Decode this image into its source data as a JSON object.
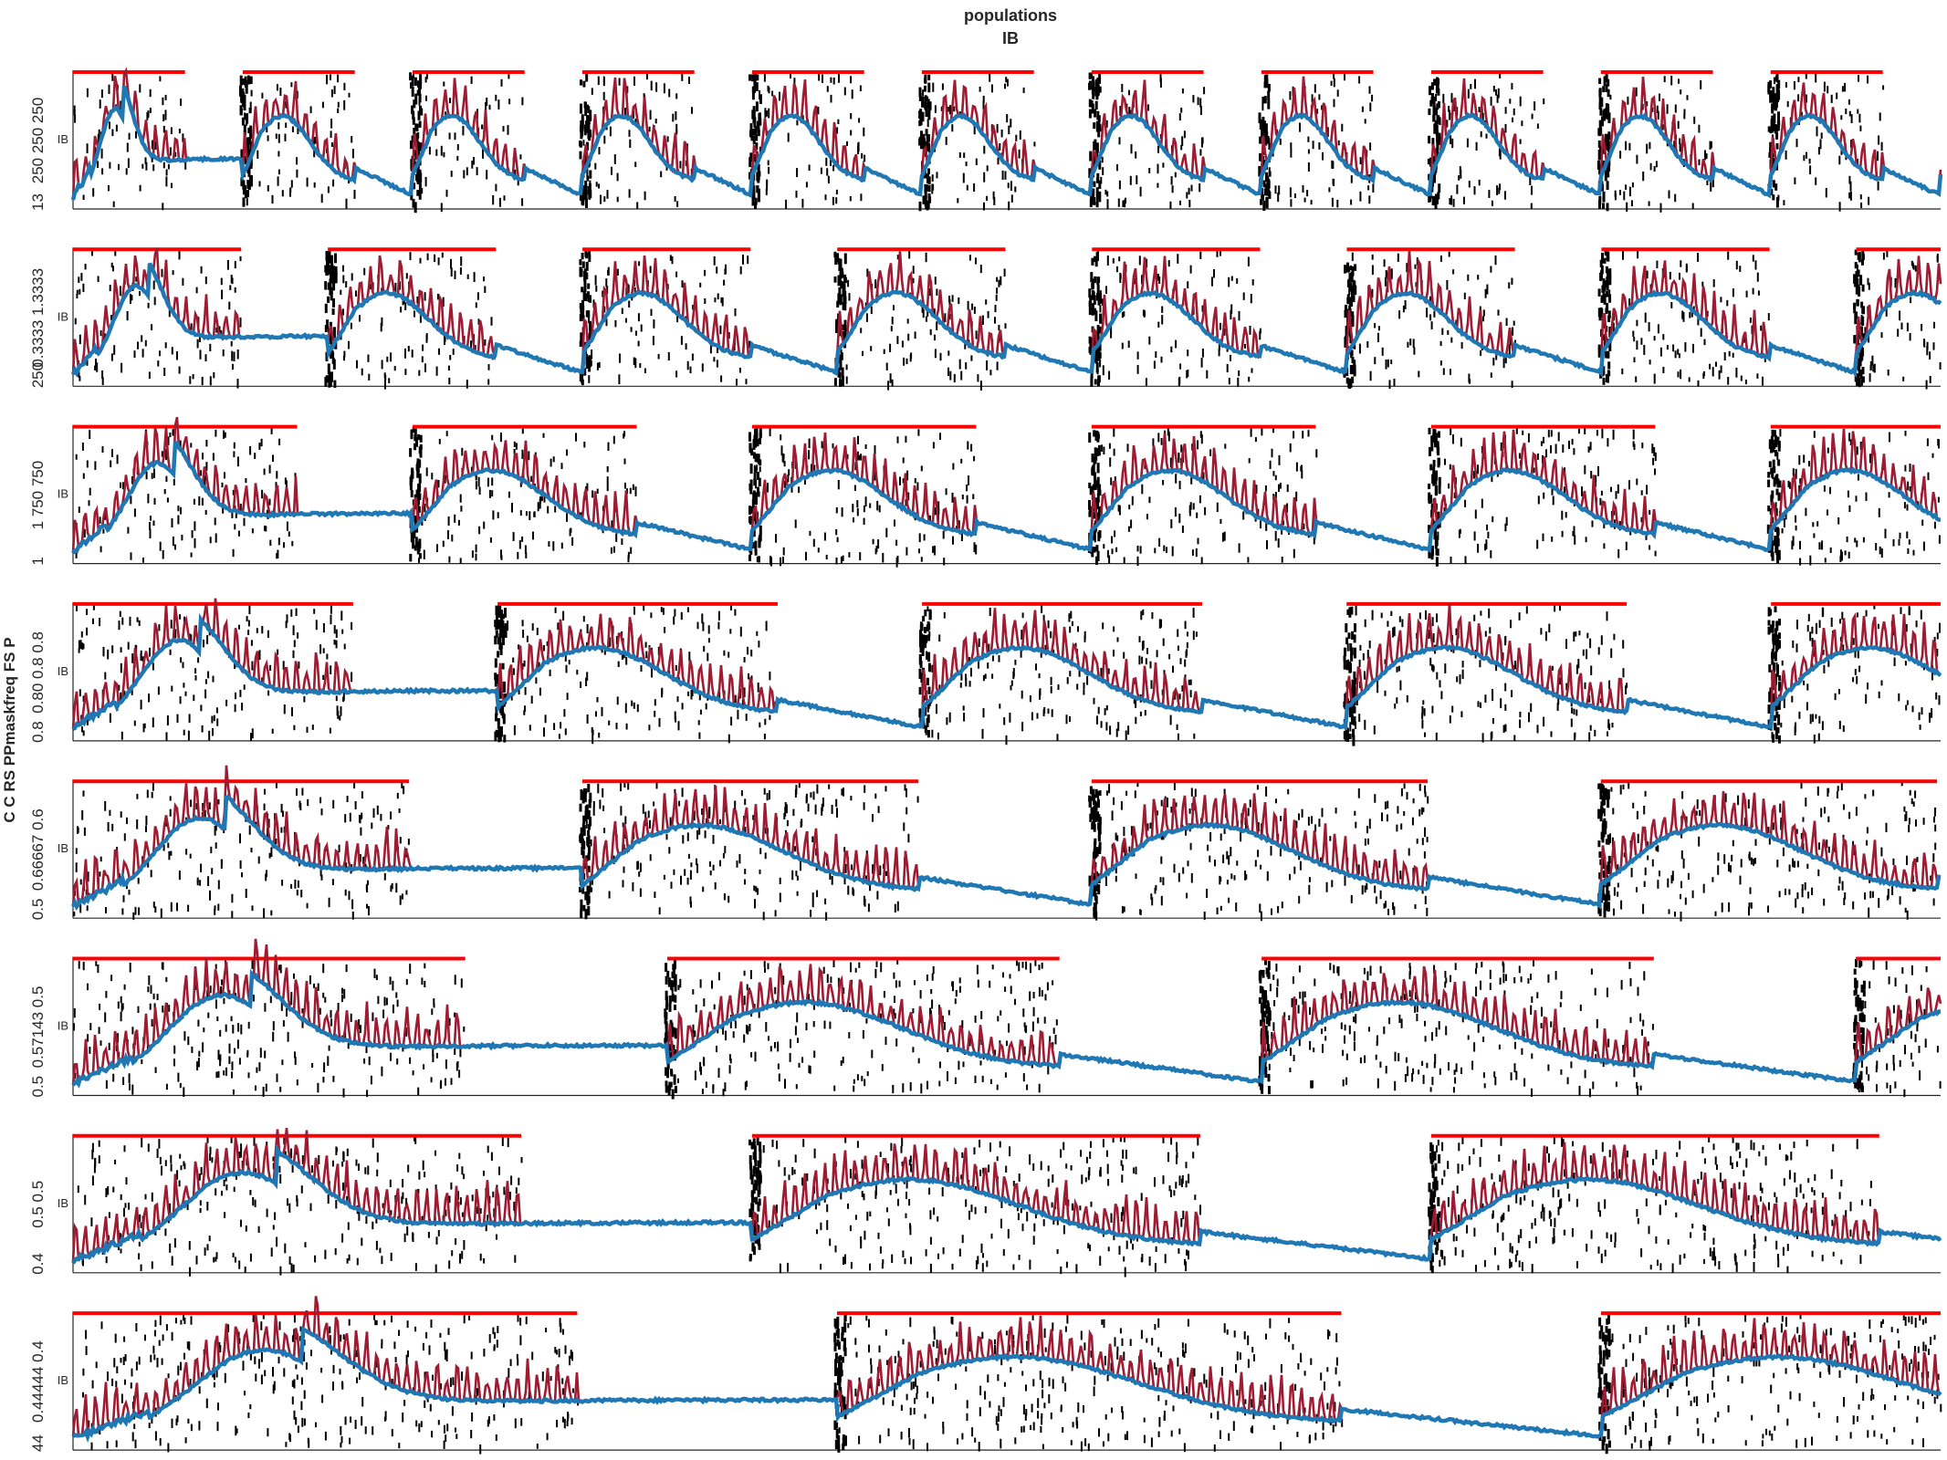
{
  "chart_data": {
    "type": "line",
    "title": "populations",
    "subtitle": "IB",
    "ylabel": "C C RS PPmaskfreq FS P",
    "panel_label": "IB",
    "colors": {
      "raster": "#000000",
      "pulse": "#ff0000",
      "ib_trace": "#9e1b32",
      "avg_trace": "#1f77b4",
      "axis": "#262626"
    },
    "panels": [
      {
        "ytick_text": "250 250 250",
        "ytick_lower": "13",
        "n_pulses": 11,
        "rel_period": 0.0909
      },
      {
        "ytick_text": "0.3333 1.3333",
        "ytick_lower": "250",
        "n_pulses": 8,
        "rel_period": 0.1364
      },
      {
        "ytick_text": "1 750 750",
        "ytick_lower": "1",
        "n_pulses": 6,
        "rel_period": 0.1818
      },
      {
        "ytick_text": "0.80 0.8 0.8",
        "ytick_lower": "0.8",
        "n_pulses": 5,
        "rel_period": 0.2273
      },
      {
        "ytick_text": "0.66667 0.6",
        "ytick_lower": "0.5",
        "n_pulses": 4,
        "rel_period": 0.2727
      },
      {
        "ytick_text": "0.57143 0.5",
        "ytick_lower": "0.5",
        "n_pulses": 4,
        "rel_period": 0.3182
      },
      {
        "ytick_text": "0.5 0.5",
        "ytick_lower": "0.4",
        "n_pulses": 3,
        "rel_period": 0.3636
      },
      {
        "ytick_text": "0.44444 0.4",
        "ytick_lower": "44",
        "n_pulses": 3,
        "rel_period": 0.4091
      }
    ]
  }
}
